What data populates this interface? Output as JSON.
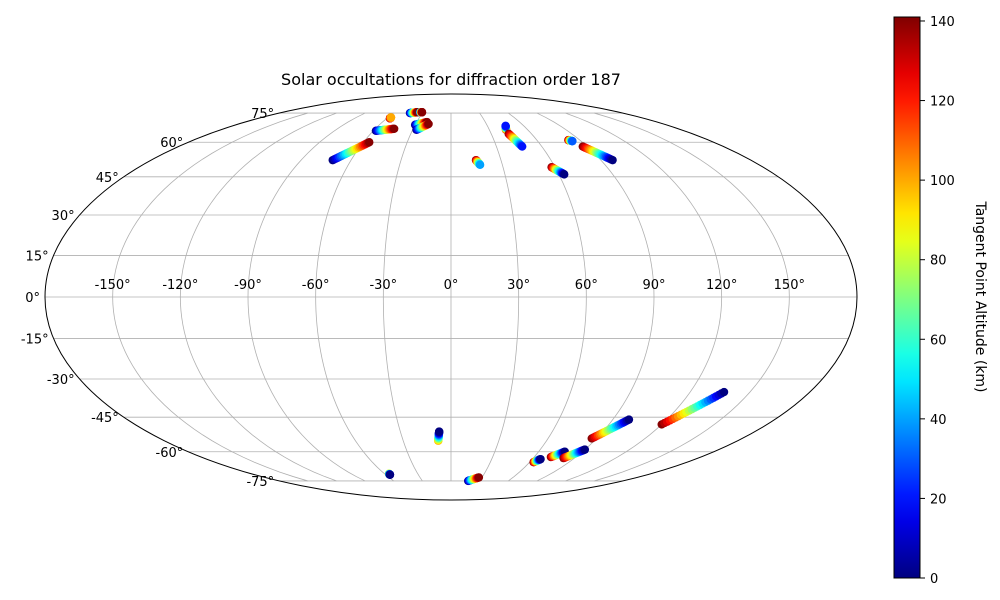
{
  "chart_data": {
    "type": "scatter",
    "projection": "mollweide",
    "title": "Solar occultations for diffraction order 187",
    "grid": true,
    "lon_ticks": [
      -150,
      -120,
      -90,
      -60,
      -30,
      0,
      30,
      60,
      90,
      120,
      150
    ],
    "lon_tick_labels": [
      "-150°",
      "-120°",
      "-90°",
      "-60°",
      "-30°",
      "0°",
      "30°",
      "60°",
      "90°",
      "120°",
      "150°"
    ],
    "lat_ticks": [
      -75,
      -60,
      -45,
      -30,
      -15,
      0,
      15,
      30,
      45,
      60,
      75
    ],
    "lat_tick_labels": [
      "-75°",
      "-60°",
      "-45°",
      "-30°",
      "-15°",
      "0°",
      "15°",
      "30°",
      "45°",
      "60°",
      "75°"
    ],
    "colorbar": {
      "label": "Tangent Point Altitude (km)",
      "range": [
        0,
        141
      ],
      "ticks": [
        0,
        20,
        40,
        60,
        80,
        100,
        120,
        140
      ],
      "tick_labels": [
        "0",
        "20",
        "40",
        "60",
        "80",
        "100",
        "120",
        "140"
      ],
      "colormap": "jet"
    },
    "tracks": [
      {
        "start": [
          -71,
          52
        ],
        "end": [
          -56,
          60
        ],
        "alt_start": 0,
        "alt_end": 140
      },
      {
        "start": [
          -58,
          65.5
        ],
        "end": [
          -45,
          66.5
        ],
        "alt_start": 0,
        "alt_end": 140
      },
      {
        "start": [
          -57,
          72
        ],
        "end": [
          -57,
          72.5
        ],
        "alt_start": 140,
        "alt_end": 100
      },
      {
        "start": [
          -43,
          75
        ],
        "end": [
          -36,
          75.5
        ],
        "alt_start": 0,
        "alt_end": 140
      },
      {
        "start": [
          -33,
          75.5
        ],
        "end": [
          -31,
          75.5
        ],
        "alt_start": 20,
        "alt_end": 140
      },
      {
        "start": [
          -30,
          68.5
        ],
        "end": [
          -21,
          70
        ],
        "alt_start": 0,
        "alt_end": 140
      },
      {
        "start": [
          -27,
          66
        ],
        "end": [
          -19,
          69
        ],
        "alt_start": 0,
        "alt_end": 140
      },
      {
        "start": [
          15,
          52
        ],
        "end": [
          17,
          50
        ],
        "alt_start": 140,
        "alt_end": 40
      },
      {
        "start": [
          43,
          66
        ],
        "end": [
          45,
          68
        ],
        "alt_start": 120,
        "alt_end": 20
      },
      {
        "start": [
          43,
          64
        ],
        "end": [
          47,
          58
        ],
        "alt_start": 140,
        "alt_end": 20
      },
      {
        "start": [
          58,
          49
        ],
        "end": [
          63,
          46
        ],
        "alt_start": 140,
        "alt_end": 0
      },
      {
        "start": [
          82,
          61
        ],
        "end": [
          84,
          60.5
        ],
        "alt_start": 140,
        "alt_end": 30
      },
      {
        "start": [
          87,
          58
        ],
        "end": [
          97,
          52
        ],
        "alt_start": 140,
        "alt_end": 0
      },
      {
        "start": [
          -8,
          -55
        ],
        "end": [
          -7,
          -51
        ],
        "alt_start": 100,
        "alt_end": 0
      },
      {
        "start": [
          -56,
          -71
        ],
        "end": [
          -56,
          -71.5
        ],
        "alt_start": 90,
        "alt_end": 0
      },
      {
        "start": [
          18,
          -75
        ],
        "end": [
          27,
          -73
        ],
        "alt_start": 0,
        "alt_end": 140
      },
      {
        "start": [
          63,
          -65
        ],
        "end": [
          66,
          -63.5
        ],
        "alt_start": 140,
        "alt_end": 0
      },
      {
        "start": [
          72,
          -62.5
        ],
        "end": [
          78,
          -60
        ],
        "alt_start": 140,
        "alt_end": 0
      },
      {
        "start": [
          82,
          -63
        ],
        "end": [
          90,
          -59
        ],
        "alt_start": 140,
        "alt_end": 0
      },
      {
        "start": [
          87,
          -54
        ],
        "end": [
          99,
          -46
        ],
        "alt_start": 140,
        "alt_end": 0
      },
      {
        "start": [
          120,
          -48
        ],
        "end": [
          137,
          -35
        ],
        "alt_start": 140,
        "alt_end": 0
      }
    ]
  }
}
